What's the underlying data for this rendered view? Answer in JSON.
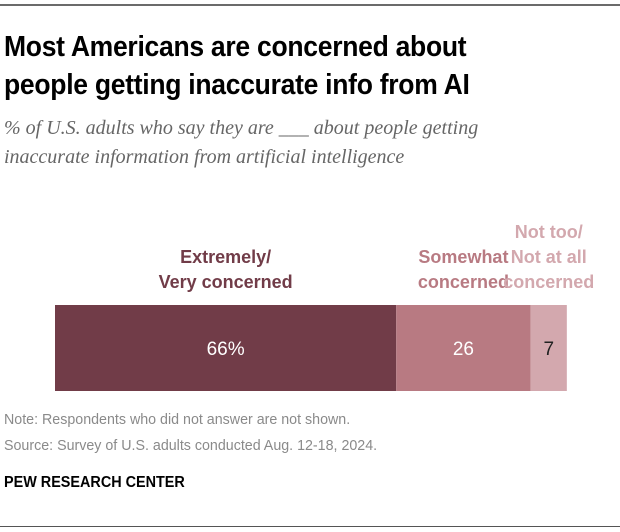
{
  "chart_data": {
    "type": "bar",
    "orientation": "horizontal-stacked",
    "title": "Most Americans are concerned about people getting inaccurate info from AI",
    "title_lines": [
      "Most Americans are concerned about",
      "people getting inaccurate info from AI"
    ],
    "subtitle_lines": [
      "% of U.S. adults who say they are ___ about people getting",
      "inaccurate information from artificial intelligence"
    ],
    "categories": [
      "U.S. adults"
    ],
    "series": [
      {
        "name": "Extremely/ Very concerned",
        "label_lines": [
          "Extremely/",
          "Very concerned"
        ],
        "values": [
          66
        ],
        "display": "66%",
        "color": "#713c48",
        "label_color": "#713c48",
        "value_text_color": "#ffffff"
      },
      {
        "name": "Somewhat concerned",
        "label_lines": [
          "Somewhat",
          "concerned"
        ],
        "values": [
          26
        ],
        "display": "26",
        "color": "#b87a82",
        "label_color": "#b87a82",
        "value_text_color": "#ffffff"
      },
      {
        "name": "Not too/ Not at all concerned",
        "label_lines": [
          "Not too/",
          "Not at all",
          "concerned"
        ],
        "values": [
          7
        ],
        "display": "7",
        "color": "#d3a8ae",
        "label_color": "#d3a8ae",
        "value_text_color": "#222222"
      }
    ],
    "xlim": [
      0,
      100
    ],
    "grid": false,
    "legend": "labels above segments",
    "xlabel": "",
    "ylabel": ""
  },
  "footer": {
    "note": "Note: Respondents who did not answer are not shown.",
    "source": "Source: Survey of U.S. adults conducted Aug. 12-18, 2024.",
    "brand": "PEW RESEARCH CENTER"
  }
}
